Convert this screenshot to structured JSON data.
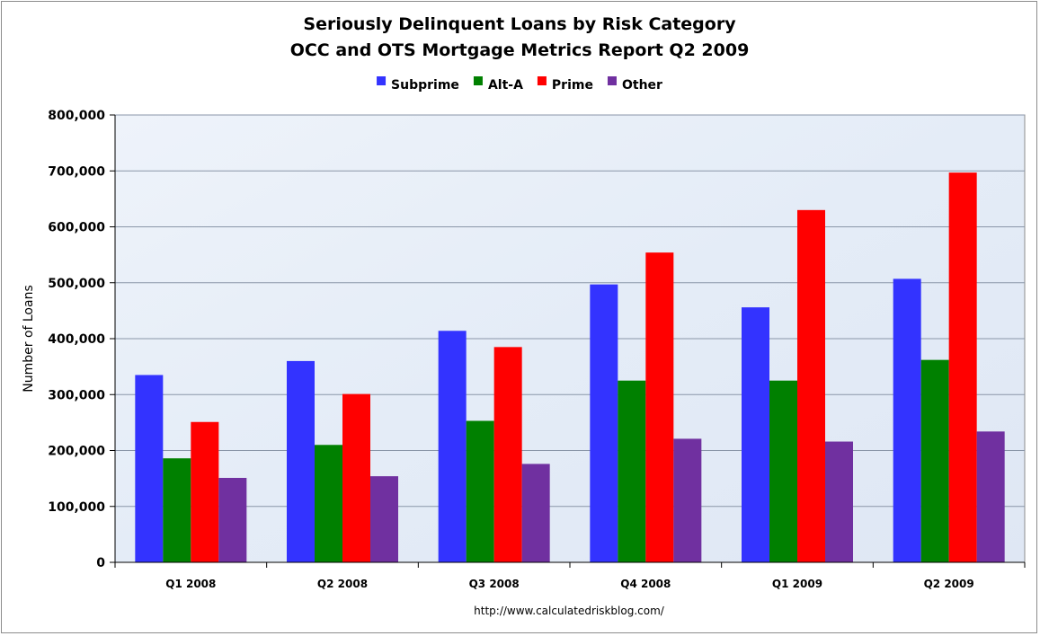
{
  "chart_data": {
    "type": "bar",
    "title": "Seriously Delinquent Loans by Risk Category",
    "subtitle": "OCC and OTS Mortgage Metrics Report Q2 2009",
    "ylabel": "Number of Loans",
    "xlabel": "",
    "ylim": [
      0,
      800000
    ],
    "yticks": [
      0,
      100000,
      200000,
      300000,
      400000,
      500000,
      600000,
      700000,
      800000
    ],
    "ytick_labels": [
      "0",
      "100,000",
      "200,000",
      "300,000",
      "400,000",
      "500,000",
      "600,000",
      "700,000",
      "800,000"
    ],
    "grid": true,
    "legend_position": "top",
    "categories": [
      "Q1 2008",
      "Q2 2008",
      "Q3 2008",
      "Q4 2008",
      "Q1 2009",
      "Q2 2009"
    ],
    "series": [
      {
        "name": "Subprime",
        "color": "#3333ff",
        "values": [
          335000,
          360000,
          414000,
          497000,
          456000,
          507000
        ]
      },
      {
        "name": "Alt-A",
        "color": "#008000",
        "values": [
          186000,
          210000,
          253000,
          325000,
          325000,
          362000
        ]
      },
      {
        "name": "Prime",
        "color": "#ff0000",
        "values": [
          251000,
          301000,
          385000,
          554000,
          630000,
          697000
        ]
      },
      {
        "name": "Other",
        "color": "#7030a0",
        "values": [
          151000,
          154000,
          176000,
          221000,
          216000,
          234000
        ]
      }
    ],
    "source": "http://www.calculatedriskblog.com/"
  }
}
